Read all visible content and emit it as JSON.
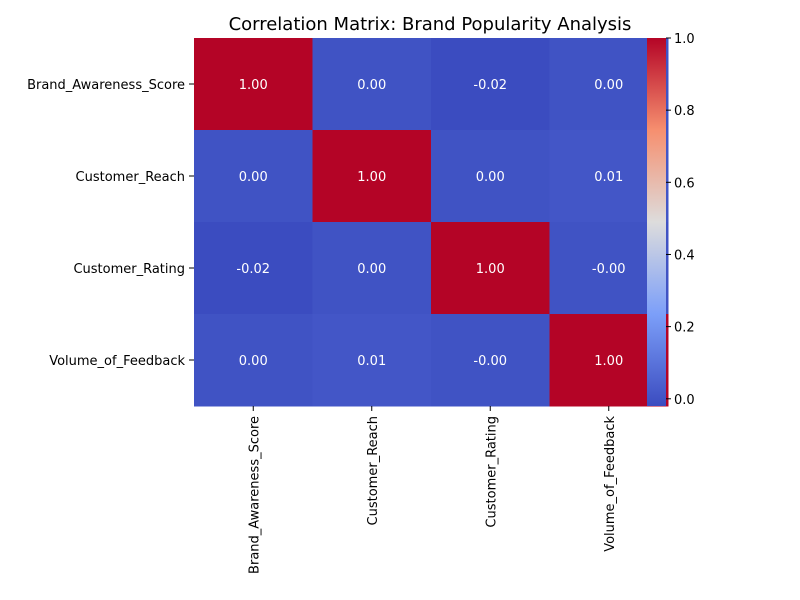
{
  "chart_data": {
    "type": "heatmap",
    "title": "Correlation Matrix: Brand Popularity Analysis",
    "xlabel": "",
    "ylabel": "",
    "x_categories": [
      "Brand_Awareness_Score",
      "Customer_Reach",
      "Customer_Rating",
      "Volume_of_Feedback"
    ],
    "y_categories": [
      "Brand_Awareness_Score",
      "Customer_Reach",
      "Customer_Rating",
      "Volume_of_Feedback"
    ],
    "values": [
      [
        1.0,
        0.0,
        -0.02,
        0.0
      ],
      [
        0.0,
        1.0,
        0.0,
        0.01
      ],
      [
        -0.02,
        0.0,
        1.0,
        -0.0
      ],
      [
        0.0,
        0.01,
        -0.0,
        1.0
      ]
    ],
    "cell_labels": [
      [
        "1.00",
        "0.00",
        "-0.02",
        "0.00"
      ],
      [
        "0.00",
        "1.00",
        "0.00",
        "0.01"
      ],
      [
        "-0.02",
        "0.00",
        "1.00",
        "-0.00"
      ],
      [
        "0.00",
        "0.01",
        "-0.00",
        "1.00"
      ]
    ],
    "colormap": "coolwarm",
    "color_range": [
      -0.02,
      1.0
    ],
    "colorbar_ticks": [
      1.0,
      0.8,
      0.6,
      0.4,
      0.2,
      0.0
    ],
    "colorbar_tick_labels": [
      "1.0",
      "0.8",
      "0.6",
      "0.4",
      "0.2",
      "0.0"
    ],
    "grid": false,
    "legend": "colorbar-right"
  }
}
